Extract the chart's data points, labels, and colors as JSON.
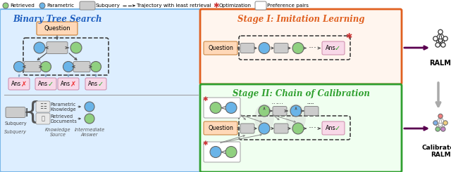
{
  "green": "#90d080",
  "blue": "#6ab4e8",
  "gray": "#b8b8b8",
  "pink": "#f8d8e8",
  "orange_bg": "#fff5ee",
  "green_bg": "#f0fff0",
  "blue_bg": "#ddeeff",
  "left_title": "Binary Tree Search",
  "left_title_color": "#2060c0",
  "stage1_title": "Stage I: Imitation Learning",
  "stage1_color": "#e06020",
  "stage2_title": "Stage II: Chain of Calibration",
  "stage2_color": "#30a030",
  "ralm_color": "#333333",
  "dark_arrow": "#5a0050",
  "gray_arrow": "#aaaaaa",
  "question_bg": "#ffd8b8",
  "question_edge": "#cc8844"
}
